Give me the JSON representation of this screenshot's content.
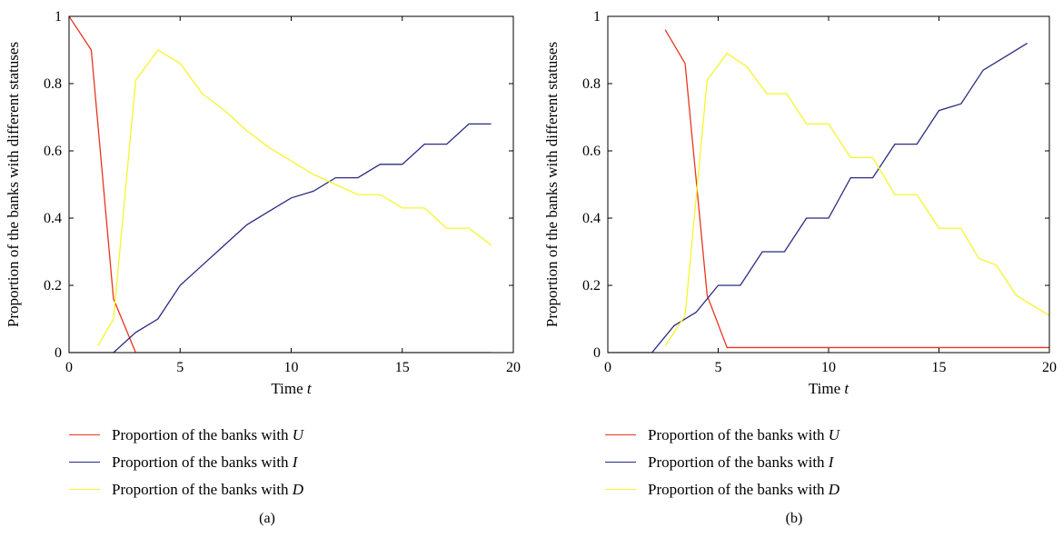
{
  "colors": {
    "U": "#e8351f",
    "I": "#2a2a80",
    "D": "#f5f52a",
    "axis": "#000000"
  },
  "chart_data": [
    {
      "type": "line",
      "caption": "(a)",
      "xlabel": "Time",
      "xlabel_var": "t",
      "ylabel": "Proportion of the banks with different statuses",
      "xlim": [
        0,
        20
      ],
      "ylim": [
        0,
        1
      ],
      "xticks": [
        0,
        5,
        10,
        15,
        20
      ],
      "yticks": [
        0,
        0.2,
        0.4,
        0.6,
        0.8,
        1
      ],
      "grid": false,
      "legend_position": "below",
      "series": [
        {
          "key": "U",
          "name": "Proportion of the banks with",
          "symbol": "U",
          "x": [
            0,
            1,
            2,
            3,
            19
          ],
          "y": [
            1.0,
            0.9,
            0.16,
            0.0,
            0.0
          ]
        },
        {
          "key": "I",
          "name": "Proportion of the banks with",
          "symbol": "I",
          "x": [
            0,
            2,
            3,
            4,
            5,
            6,
            7,
            8,
            9,
            10,
            11,
            12,
            13,
            14,
            15,
            16,
            17,
            18,
            19
          ],
          "y": [
            0,
            0.0,
            0.06,
            0.1,
            0.2,
            0.26,
            0.32,
            0.38,
            0.42,
            0.46,
            0.48,
            0.52,
            0.52,
            0.56,
            0.56,
            0.62,
            0.62,
            0.68,
            0.68
          ]
        },
        {
          "key": "D",
          "name": "Proportion of the banks with",
          "symbol": "D",
          "x": [
            1.3,
            2,
            3,
            4,
            5,
            6,
            7,
            8,
            9,
            10,
            11,
            12,
            13,
            14,
            15,
            16,
            17,
            18,
            19
          ],
          "y": [
            0.02,
            0.1,
            0.81,
            0.9,
            0.86,
            0.77,
            0.72,
            0.66,
            0.61,
            0.57,
            0.53,
            0.5,
            0.47,
            0.47,
            0.43,
            0.43,
            0.37,
            0.37,
            0.32
          ]
        }
      ]
    },
    {
      "type": "line",
      "caption": "(b)",
      "xlabel": "Time",
      "xlabel_var": "t",
      "ylabel": "Proportion of the banks with different statuses",
      "xlim": [
        0,
        20
      ],
      "ylim": [
        0,
        1
      ],
      "xticks": [
        0,
        5,
        10,
        15,
        20
      ],
      "yticks": [
        0,
        0.2,
        0.4,
        0.6,
        0.8,
        1
      ],
      "grid": false,
      "legend_position": "below",
      "series": [
        {
          "key": "U",
          "name": "Proportion of the banks with",
          "symbol": "U",
          "x": [
            2.6,
            3.5,
            4.5,
            5.4,
            20.5
          ],
          "y": [
            0.96,
            0.86,
            0.17,
            0.015,
            0.015
          ]
        },
        {
          "key": "I",
          "name": "Proportion of the banks with",
          "symbol": "I",
          "x": [
            0,
            2,
            3,
            4,
            5,
            6,
            7,
            8,
            9,
            10,
            11,
            12,
            13,
            14,
            15,
            16,
            17,
            18,
            19
          ],
          "y": [
            0,
            0.0,
            0.08,
            0.12,
            0.2,
            0.2,
            0.3,
            0.3,
            0.4,
            0.4,
            0.52,
            0.52,
            0.62,
            0.62,
            0.72,
            0.74,
            0.84,
            0.88,
            0.92
          ]
        },
        {
          "key": "D",
          "name": "Proportion of the banks with",
          "symbol": "D",
          "x": [
            2.6,
            3.5,
            4.5,
            5.4,
            6.3,
            7.2,
            8.1,
            9,
            10,
            11,
            12,
            13,
            14,
            15,
            16,
            16.8,
            17.6,
            18.5,
            20.5
          ],
          "y": [
            0.02,
            0.11,
            0.81,
            0.89,
            0.85,
            0.77,
            0.77,
            0.68,
            0.68,
            0.58,
            0.58,
            0.47,
            0.47,
            0.37,
            0.37,
            0.28,
            0.26,
            0.17,
            0.09
          ]
        }
      ]
    }
  ]
}
